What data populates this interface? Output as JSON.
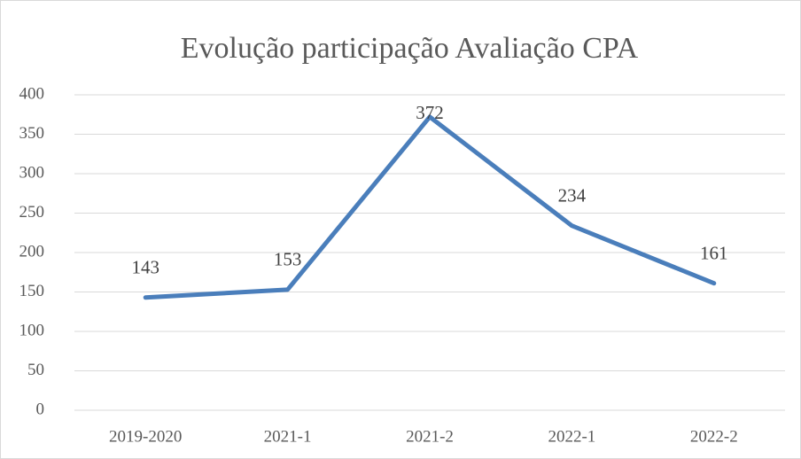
{
  "chart_data": {
    "type": "line",
    "title": "Evolução participação Avaliação CPA",
    "categories": [
      "2019-2020",
      "2021-1",
      "2021-2",
      "2022-1",
      "2022-2"
    ],
    "values": [
      143,
      153,
      372,
      234,
      161
    ],
    "color": "#4a7ebb",
    "ylim": [
      0,
      400
    ],
    "yticks": [
      0,
      50,
      100,
      150,
      200,
      250,
      300,
      350,
      400
    ],
    "grid": true
  }
}
